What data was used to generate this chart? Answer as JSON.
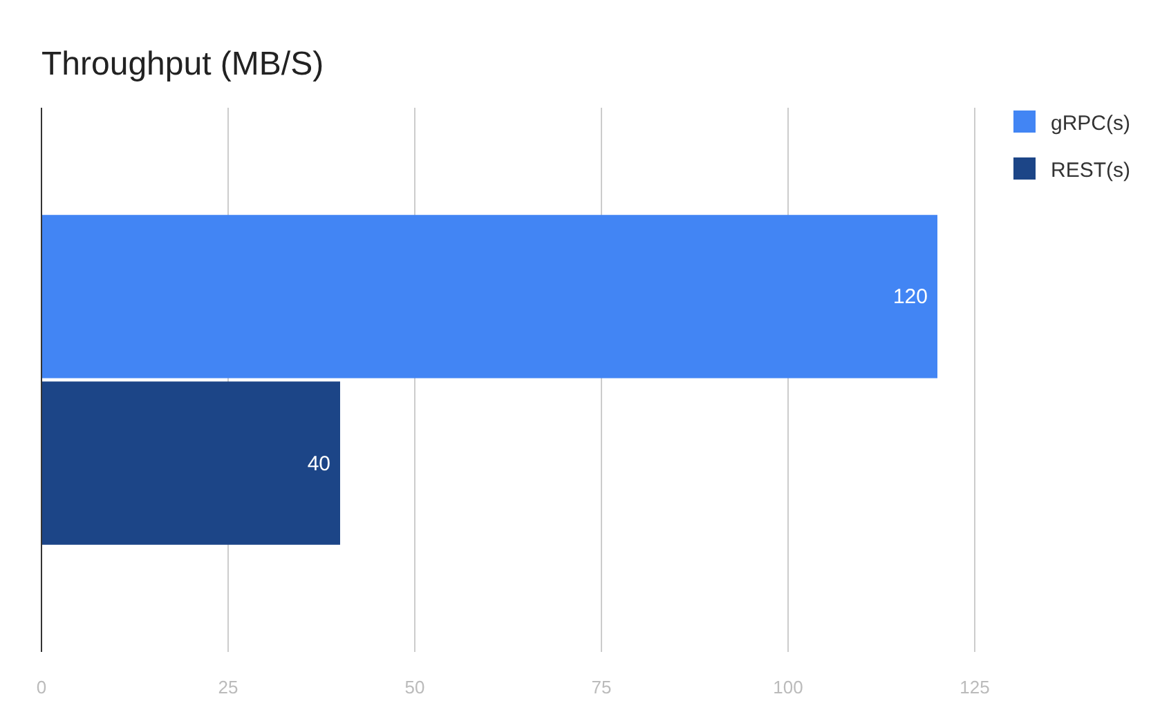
{
  "chart_data": {
    "type": "bar",
    "orientation": "horizontal",
    "title": "Throughput (MB/S)",
    "categories": [
      null
    ],
    "series": [
      {
        "name": "gRPC(s)",
        "color": "#4285f4",
        "values": [
          120
        ]
      },
      {
        "name": "REST(s)",
        "color": "#1c4587",
        "values": [
          40
        ]
      }
    ],
    "xlim": [
      0,
      125
    ],
    "xticks": [
      0,
      25,
      50,
      75,
      100,
      125
    ],
    "grid": "x",
    "legend": "top right",
    "data_labels": true
  }
}
